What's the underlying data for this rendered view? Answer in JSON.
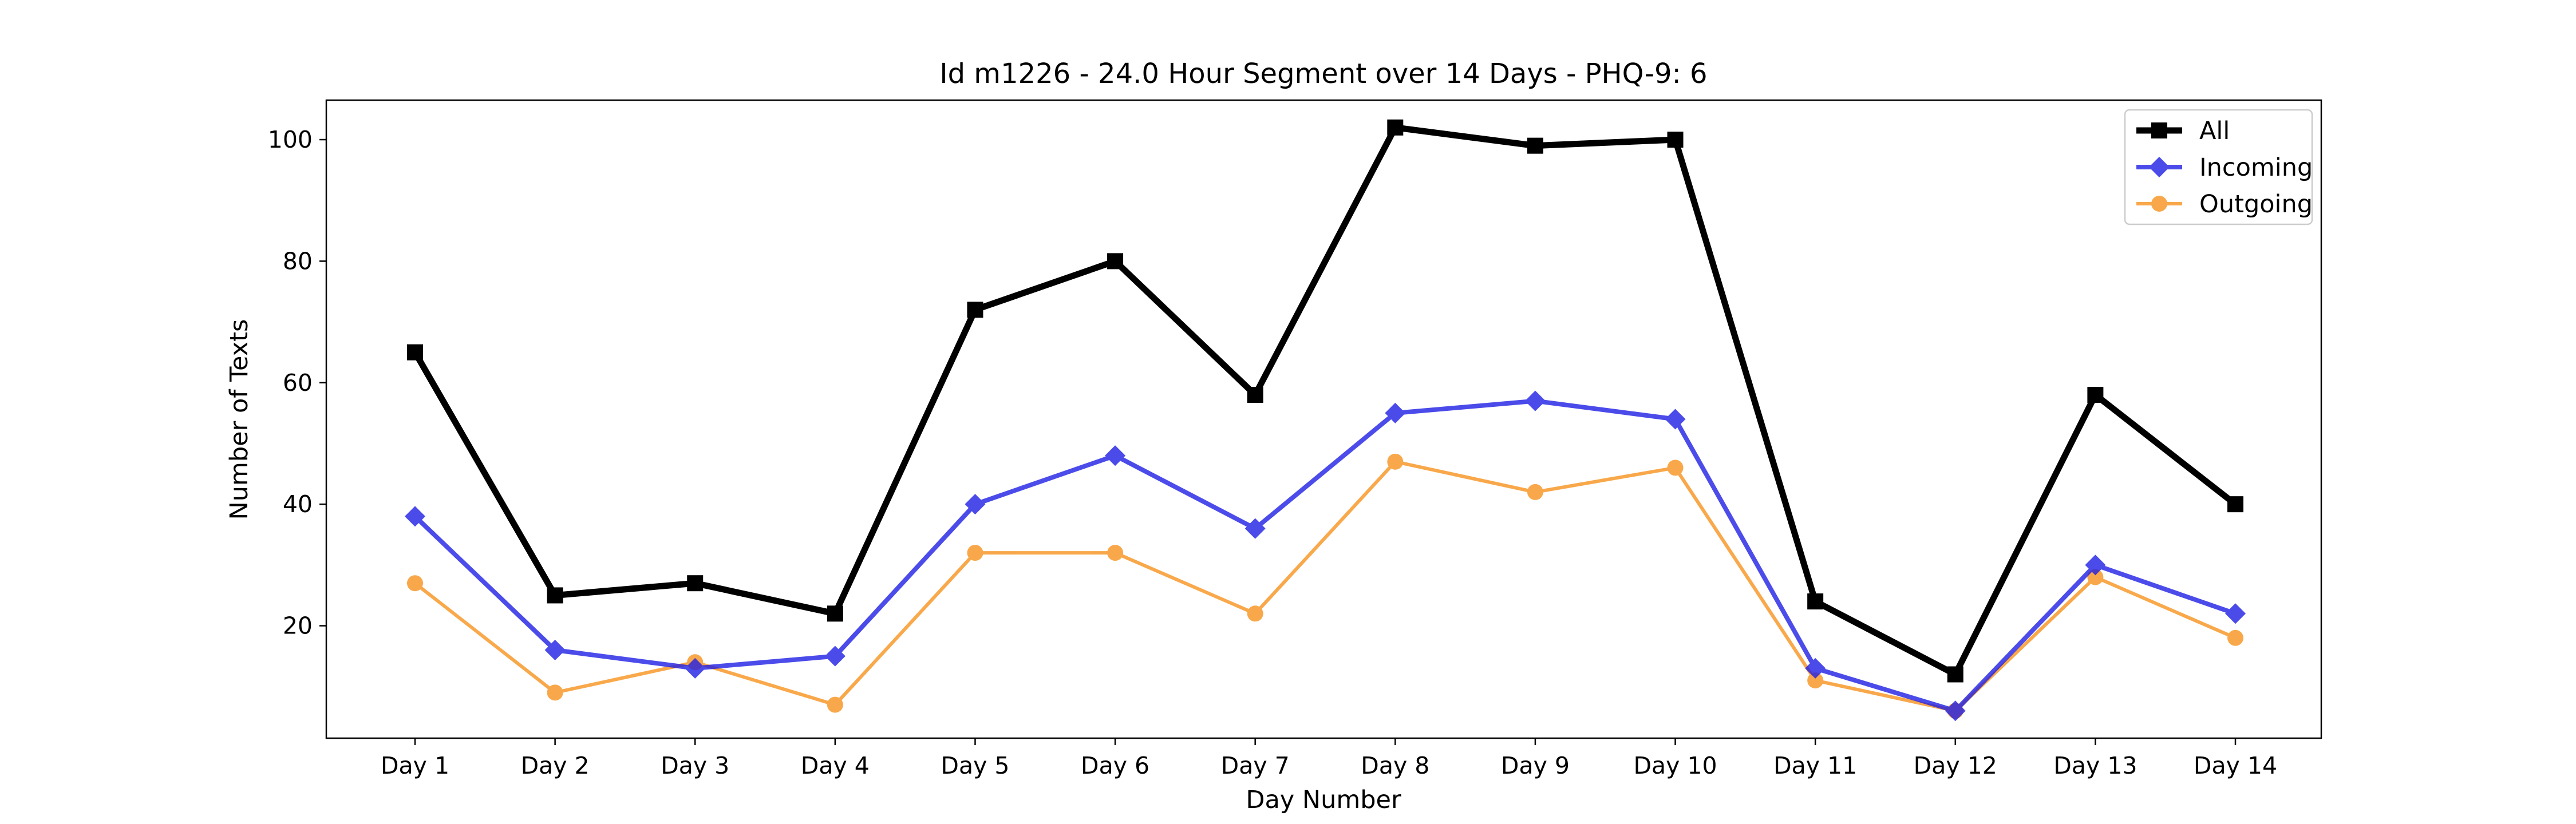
{
  "chart_data": {
    "type": "line",
    "title": "Id m1226 - 24.0 Hour Segment over 14 Days - PHQ-9: 6",
    "xlabel": "Day Number",
    "ylabel": "Number of Texts",
    "categories": [
      "Day 1",
      "Day 2",
      "Day 3",
      "Day 4",
      "Day 5",
      "Day 6",
      "Day 7",
      "Day 8",
      "Day 9",
      "Day 10",
      "Day 11",
      "Day 12",
      "Day 13",
      "Day 14"
    ],
    "ylim": [
      1.5,
      106.5
    ],
    "yticks": [
      20,
      40,
      60,
      80,
      100
    ],
    "grid": false,
    "legend_position": "top-right",
    "series": [
      {
        "name": "All",
        "color": "#000000",
        "marker": "square",
        "values": [
          65,
          25,
          27,
          22,
          72,
          80,
          58,
          102,
          99,
          100,
          24,
          12,
          58,
          40
        ]
      },
      {
        "name": "Incoming",
        "color": "#1f1fe6",
        "marker": "diamond",
        "values": [
          38,
          16,
          13,
          15,
          40,
          48,
          36,
          55,
          57,
          54,
          13,
          6,
          30,
          22
        ]
      },
      {
        "name": "Outgoing",
        "color": "#f7931e",
        "marker": "circle",
        "values": [
          27,
          9,
          14,
          7,
          32,
          32,
          22,
          47,
          42,
          46,
          11,
          6,
          28,
          18
        ]
      }
    ]
  }
}
